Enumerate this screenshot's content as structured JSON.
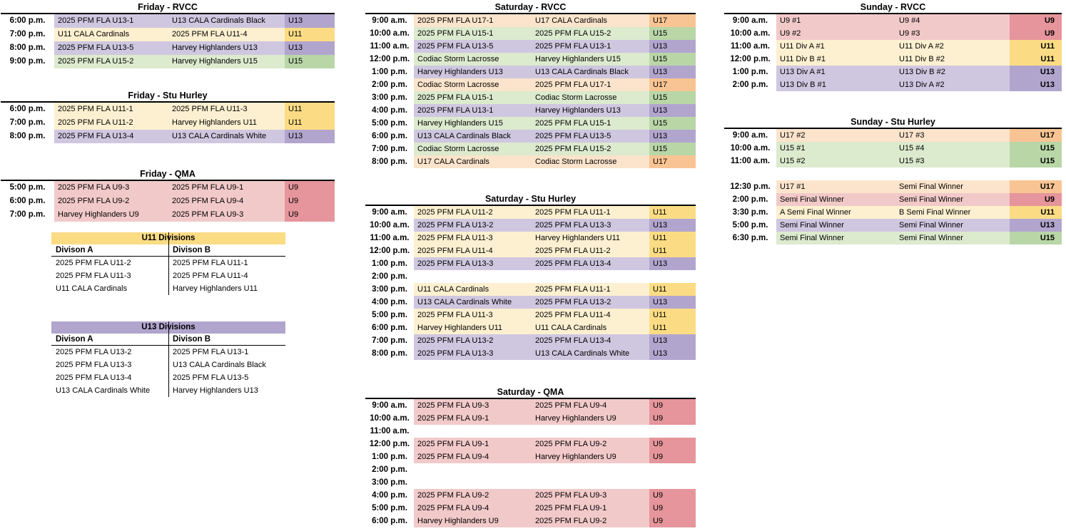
{
  "page": {
    "background": "#FFFFFF",
    "text_color": "#000000",
    "rule_color": "#000000"
  },
  "colors": {
    "u9": {
      "body": "#F2C9C9",
      "cat": "#E5959B"
    },
    "u11": {
      "body": "#FDF0D0",
      "cat": "#FBDC84"
    },
    "u13": {
      "body": "#CFC7E0",
      "cat": "#B1A5CE"
    },
    "u15": {
      "body": "#DCEACE",
      "cat": "#B9D6A7"
    },
    "u17": {
      "body": "#FBE4CB",
      "cat": "#F9C493"
    }
  },
  "schedule_tables": [
    {
      "id": "friday-rvcc",
      "title": "Friday - RVCC",
      "cat_bold": false,
      "rows": [
        {
          "time": "6:00 p.m.",
          "home": "2025 PFM FLA U13-1",
          "away": "U13 CALA Cardinals Black",
          "category": "U13",
          "age_key": "u13"
        },
        {
          "time": "7:00 p.m.",
          "home": "U11 CALA Cardinals",
          "away": "2025 PFM FLA U11-4",
          "category": "U11",
          "age_key": "u11"
        },
        {
          "time": "8:00 p.m.",
          "home": "2025 PFM FLA U13-5",
          "away": "Harvey Highlanders U13",
          "category": "U13",
          "age_key": "u13"
        },
        {
          "time": "9:00 p.m.",
          "home": "2025 PFM FLA U15-2",
          "away": "Harvey Highlanders U15",
          "category": "U15",
          "age_key": "u15"
        }
      ]
    },
    {
      "id": "friday-stu-hurley",
      "title": "Friday - Stu Hurley",
      "cat_bold": false,
      "rows": [
        {
          "time": "6:00 p.m.",
          "home": "2025 PFM FLA U11-1",
          "away": "2025 PFM FLA U11-3",
          "category": "U11",
          "age_key": "u11"
        },
        {
          "time": "7:00 p.m.",
          "home": "2025 PFM FLA U11-2",
          "away": "Harvey Highlanders U11",
          "category": "U11",
          "age_key": "u11"
        },
        {
          "time": "8:00 p.m.",
          "home": "2025 PFM FLA U13-4",
          "away": "U13 CALA Cardinals White",
          "category": "U13",
          "age_key": "u13"
        }
      ]
    },
    {
      "id": "friday-qma",
      "title": "Friday - QMA",
      "cat_bold": false,
      "rows": [
        {
          "time": "5:00 p.m.",
          "home": "2025 PFM FLA U9-3",
          "away": "2025 PFM FLA U9-1",
          "category": "U9",
          "age_key": "u9"
        },
        {
          "time": "6:00 p.m.",
          "home": "2025 PFM FLA U9-2",
          "away": "2025 PFM FLA U9-4",
          "category": "U9",
          "age_key": "u9"
        },
        {
          "time": "7:00 p.m.",
          "home": "Harvey Highlanders U9",
          "away": "2025 PFM FLA U9-3",
          "category": "U9",
          "age_key": "u9"
        }
      ]
    },
    {
      "id": "saturday-rvcc",
      "title": "Saturday - RVCC",
      "cat_bold": false,
      "rows": [
        {
          "time": "9:00 a.m.",
          "home": "2025 PFM FLA U17-1",
          "away": "U17 CALA Cardinals",
          "category": "U17",
          "age_key": "u17"
        },
        {
          "time": "10:00 a.m.",
          "home": "2025 PFM FLA U15-1",
          "away": "2025 PFM FLA U15-2",
          "category": "U15",
          "age_key": "u15"
        },
        {
          "time": "11:00 a.m.",
          "home": "2025 PFM FLA U13-5",
          "away": "2025 PFM FLA U13-1",
          "category": "U13",
          "age_key": "u13"
        },
        {
          "time": "12:00 p.m.",
          "home": "Codiac Storm Lacrosse",
          "away": "Harvey Highlanders U15",
          "category": "U15",
          "age_key": "u15"
        },
        {
          "time": "1:00 p.m.",
          "home": "Harvey Highlanders U13",
          "away": "U13 CALA Cardinals Black",
          "category": "U13",
          "age_key": "u13"
        },
        {
          "time": "2:00 p.m.",
          "home": "Codiac Storm Lacrosse",
          "away": "2025 PFM FLA U17-1",
          "category": "U17",
          "age_key": "u17"
        },
        {
          "time": "3:00 p.m.",
          "home": "2025 PFM FLA U15-1",
          "away": "Codiac Storm Lacrosse",
          "category": "U15",
          "age_key": "u15"
        },
        {
          "time": "4:00 p.m.",
          "home": "2025 PFM FLA U13-1",
          "away": "Harvey Highlanders U13",
          "category": "U13",
          "age_key": "u13"
        },
        {
          "time": "5:00 p.m.",
          "home": "Harvey Highlanders U15",
          "away": "2025 PFM FLA U15-1",
          "category": "U15",
          "age_key": "u15"
        },
        {
          "time": "6:00 p.m.",
          "home": "U13 CALA Cardinals Black",
          "away": "2025 PFM FLA U13-5",
          "category": "U13",
          "age_key": "u13"
        },
        {
          "time": "7:00 p.m.",
          "home": "Codiac Storm Lacrosse",
          "away": "2025 PFM FLA U15-2",
          "category": "U15",
          "age_key": "u15"
        },
        {
          "time": "8:00 p.m.",
          "home": "U17 CALA Cardinals",
          "away": "Codiac Storm Lacrosse",
          "category": "U17",
          "age_key": "u17"
        }
      ]
    },
    {
      "id": "saturday-stu-hurley",
      "title": "Saturday - Stu Hurley",
      "cat_bold": false,
      "rows": [
        {
          "time": "9:00 a.m.",
          "home": "2025 PFM FLA U11-2",
          "away": "2025 PFM FLA U11-1",
          "category": "U11",
          "age_key": "u11"
        },
        {
          "time": "10:00 a.m.",
          "home": "2025 PFM FLA U13-2",
          "away": "2025 PFM FLA U13-3",
          "category": "U13",
          "age_key": "u13"
        },
        {
          "time": "11:00 a.m.",
          "home": "2025 PFM FLA U11-3",
          "away": "Harvey Highlanders U11",
          "category": "U11",
          "age_key": "u11"
        },
        {
          "time": "12:00 p.m.",
          "home": "2025 PFM FLA U11-4",
          "away": "2025 PFM FLA U11-2",
          "category": "U11",
          "age_key": "u11"
        },
        {
          "time": "1:00 p.m.",
          "home": "2025 PFM FLA U13-3",
          "away": "2025 PFM FLA U13-4",
          "category": "U13",
          "age_key": "u13"
        },
        {
          "time": "2:00 p.m.",
          "home": "",
          "away": "",
          "category": "",
          "age_key": null
        },
        {
          "time": "3:00 p.m.",
          "home": "U11 CALA Cardinals",
          "away": "2025 PFM FLA U11-1",
          "category": "U11",
          "age_key": "u11"
        },
        {
          "time": "4:00 p.m.",
          "home": "U13 CALA Cardinals White",
          "away": "2025 PFM FLA U13-2",
          "category": "U13",
          "age_key": "u13"
        },
        {
          "time": "5:00 p.m.",
          "home": "2025 PFM FLA U11-3",
          "away": "2025 PFM FLA U11-4",
          "category": "U11",
          "age_key": "u11"
        },
        {
          "time": "6:00 p.m.",
          "home": "Harvey Highlanders U11",
          "away": "U11 CALA Cardinals",
          "category": "U11",
          "age_key": "u11"
        },
        {
          "time": "7:00 p.m.",
          "home": "2025 PFM FLA U13-2",
          "away": "2025 PFM FLA U13-4",
          "category": "U13",
          "age_key": "u13"
        },
        {
          "time": "8:00 p.m.",
          "home": "2025 PFM FLA U13-3",
          "away": "U13 CALA Cardinals White",
          "category": "U13",
          "age_key": "u13"
        }
      ]
    },
    {
      "id": "saturday-qma",
      "title": "Saturday - QMA",
      "cat_bold": false,
      "rows": [
        {
          "time": "9:00 a.m.",
          "home": "2025 PFM FLA U9-3",
          "away": "2025 PFM FLA U9-4",
          "category": "U9",
          "age_key": "u9"
        },
        {
          "time": "10:00 a.m.",
          "home": "2025 PFM FLA U9-1",
          "away": "Harvey Highlanders U9",
          "category": "U9",
          "age_key": "u9"
        },
        {
          "time": "11:00 a.m.",
          "home": "",
          "away": "",
          "category": "",
          "age_key": null
        },
        {
          "time": "12:00 p.m.",
          "home": "2025 PFM FLA U9-1",
          "away": "2025 PFM FLA U9-2",
          "category": "U9",
          "age_key": "u9"
        },
        {
          "time": "1:00 p.m.",
          "home": "2025 PFM FLA U9-4",
          "away": "Harvey Highlanders U9",
          "category": "U9",
          "age_key": "u9"
        },
        {
          "time": "2:00 p.m.",
          "home": "",
          "away": "",
          "category": "",
          "age_key": null
        },
        {
          "time": "3:00 p.m.",
          "home": "",
          "away": "",
          "category": "",
          "age_key": null
        },
        {
          "time": "4:00 p.m.",
          "home": "2025 PFM FLA U9-2",
          "away": "2025 PFM FLA U9-3",
          "category": "U9",
          "age_key": "u9"
        },
        {
          "time": "5:00 p.m.",
          "home": "2025 PFM FLA U9-4",
          "away": "2025 PFM FLA U9-1",
          "category": "U9",
          "age_key": "u9"
        },
        {
          "time": "6:00 p.m.",
          "home": "Harvey Highlanders U9",
          "away": "2025 PFM FLA U9-2",
          "category": "U9",
          "age_key": "u9"
        }
      ]
    },
    {
      "id": "sunday-rvcc",
      "title": "Sunday - RVCC",
      "cat_bold": true,
      "rows": [
        {
          "time": "9:00 a.m.",
          "home": "U9 #1",
          "away": "U9 #4",
          "category": "U9",
          "age_key": "u9"
        },
        {
          "time": "10:00 a.m.",
          "home": "U9 #2",
          "away": "U9 #3",
          "category": "U9",
          "age_key": "u9"
        },
        {
          "time": "11:00 a.m.",
          "home": "U11 Div A #1",
          "away": "U11 Div A #2",
          "category": "U11",
          "age_key": "u11"
        },
        {
          "time": "12:00 p.m.",
          "home": "U11 Div B #1",
          "away": "U11 Div B #2",
          "category": "U11",
          "age_key": "u11"
        },
        {
          "time": "1:00 p.m.",
          "home": "U13 Div A #1",
          "away": "U13 Div B #2",
          "category": "U13",
          "age_key": "u13"
        },
        {
          "time": "2:00 p.m.",
          "home": "U13 Div B #1",
          "away": "U13 Div A #2",
          "category": "U13",
          "age_key": "u13"
        }
      ]
    },
    {
      "id": "sunday-stu-hurley",
      "title": "Sunday - Stu Hurley",
      "cat_bold": true,
      "rows": [
        {
          "time": "9:00 a.m.",
          "home": "U17 #2",
          "away": "U17 #3",
          "category": "U17",
          "age_key": "u17"
        },
        {
          "time": "10:00 a.m.",
          "home": "U15 #1",
          "away": "U15 #4",
          "category": "U15",
          "age_key": "u15"
        },
        {
          "time": "11:00 a.m.",
          "home": "U15 #2",
          "away": "U15 #3",
          "category": "U15",
          "age_key": "u15"
        },
        {
          "time": "",
          "home": "",
          "away": "",
          "category": "",
          "age_key": null,
          "spacer": true
        },
        {
          "time": "12:30 p.m.",
          "home": "U17 #1",
          "away": "Semi Final Winner",
          "category": "U17",
          "age_key": "u17"
        },
        {
          "time": "2:00 p.m.",
          "home": "Semi Final Winner",
          "away": "Semi Final Winner",
          "category": "U9",
          "age_key": "u9"
        },
        {
          "time": "3:30 p.m.",
          "home": "A Semi Final Winner",
          "away": "B Semi Final Winner",
          "category": "U11",
          "age_key": "u11"
        },
        {
          "time": "5:00 p.m.",
          "home": "Semi Final Winner",
          "away": "Semi Final Winner",
          "category": "U13",
          "age_key": "u13"
        },
        {
          "time": "6:30 p.m.",
          "home": "Semi Final Winner",
          "away": "Semi Final Winner",
          "category": "U15",
          "age_key": "u15"
        }
      ]
    }
  ],
  "division_tables": [
    {
      "id": "u11-divisions",
      "title": "U11 Divisions",
      "age_key": "u11",
      "headers": [
        "Divison A",
        "Divison B"
      ],
      "rows": [
        [
          "2025 PFM FLA U11-2",
          "2025 PFM FLA U11-1"
        ],
        [
          "2025 PFM FLA U11-3",
          "2025 PFM FLA U11-4"
        ],
        [
          "U11 CALA Cardinals",
          "Harvey Highlanders U11"
        ]
      ]
    },
    {
      "id": "u13-divisions",
      "title": "U13 Divisions",
      "age_key": "u13",
      "headers": [
        "Divison A",
        "Divison B"
      ],
      "rows": [
        [
          "2025 PFM FLA U13-2",
          "2025 PFM FLA U13-1"
        ],
        [
          "2025 PFM FLA U13-3",
          "U13 CALA Cardinals Black"
        ],
        [
          "2025 PFM FLA U13-4",
          "2025 PFM FLA U13-5"
        ],
        [
          "U13 CALA Cardinals White",
          "Harvey Highlanders U13"
        ]
      ]
    }
  ]
}
